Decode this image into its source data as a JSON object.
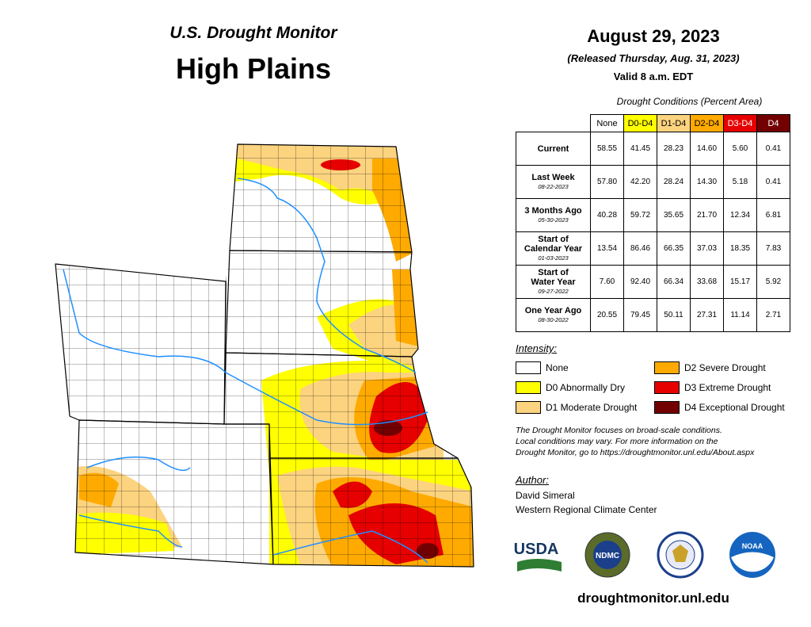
{
  "header": {
    "series": "U.S. Drought Monitor",
    "region": "High Plains",
    "date": "August 29, 2023",
    "released": "(Released Thursday, Aug. 31, 2023)",
    "valid": "Valid 8 a.m. EDT"
  },
  "table": {
    "caption": "Drought Conditions (Percent Area)",
    "columns": [
      "None",
      "D0-D4",
      "D1-D4",
      "D2-D4",
      "D3-D4",
      "D4"
    ],
    "rows": [
      {
        "label": [
          "Current"
        ],
        "values": [
          "58.55",
          "41.45",
          "28.23",
          "14.60",
          "5.60",
          "0.41"
        ]
      },
      {
        "label": [
          "Last Week"
        ],
        "date": "08-22-2023",
        "values": [
          "57.80",
          "42.20",
          "28.24",
          "14.30",
          "5.18",
          "0.41"
        ]
      },
      {
        "label": [
          "3 Months Ago"
        ],
        "date": "05-30-2023",
        "values": [
          "40.28",
          "59.72",
          "35.65",
          "21.70",
          "12.34",
          "6.81"
        ]
      },
      {
        "label": [
          "Start of",
          "Calendar Year"
        ],
        "date": "01-03-2023",
        "values": [
          "13.54",
          "86.46",
          "66.35",
          "37.03",
          "18.35",
          "7.83"
        ]
      },
      {
        "label": [
          "Start of",
          "Water Year"
        ],
        "date": "09-27-2022",
        "values": [
          "7.60",
          "92.40",
          "66.34",
          "33.68",
          "15.17",
          "5.92"
        ]
      },
      {
        "label": [
          "One Year Ago"
        ],
        "date": "08-30-2022",
        "values": [
          "20.55",
          "79.45",
          "50.11",
          "27.31",
          "11.14",
          "2.71"
        ]
      }
    ]
  },
  "legend": {
    "title": "Intensity:",
    "items": [
      "None",
      "D0 Abnormally Dry",
      "D1 Moderate Drought",
      "D2 Severe Drought",
      "D3 Extreme Drought",
      "D4 Exceptional Drought"
    ]
  },
  "note": [
    "The Drought Monitor focuses on broad-scale conditions.",
    "Local conditions may vary. For more information on the",
    "Drought Monitor, go to https://droughtmonitor.unl.edu/About.aspx"
  ],
  "author": {
    "title": "Author:",
    "lines": [
      "David Simeral",
      "Western Regional Climate Center"
    ]
  },
  "logos": [
    "USDA",
    "NDMC",
    "NOAA"
  ],
  "url": "droughtmonitor.unl.edu"
}
